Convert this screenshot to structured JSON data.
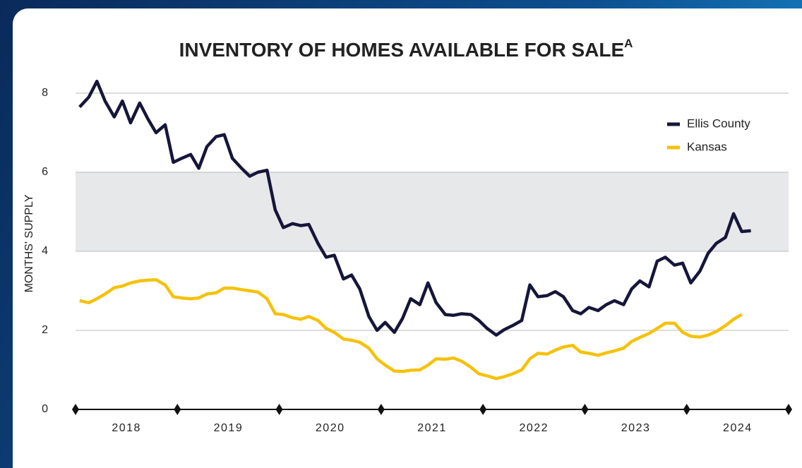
{
  "chart_data": {
    "type": "line",
    "title": "INVENTORY OF HOMES AVAILABLE FOR SALE",
    "title_superscript": "A",
    "ylabel": "MONTHS' SUPPLY",
    "x": [
      2018.04,
      2018.13,
      2018.21,
      2018.29,
      2018.38,
      2018.46,
      2018.54,
      2018.63,
      2018.71,
      2018.79,
      2018.88,
      2018.96,
      2019.04,
      2019.13,
      2019.21,
      2019.29,
      2019.38,
      2019.46,
      2019.54,
      2019.63,
      2019.71,
      2019.79,
      2019.88,
      2019.96,
      2020.04,
      2020.13,
      2020.21,
      2020.29,
      2020.38,
      2020.46,
      2020.54,
      2020.63,
      2020.71,
      2020.79,
      2020.88,
      2020.96,
      2021.04,
      2021.13,
      2021.21,
      2021.29,
      2021.38,
      2021.46,
      2021.54,
      2021.63,
      2021.71,
      2021.79,
      2021.88,
      2021.96,
      2022.04,
      2022.13,
      2022.21,
      2022.29,
      2022.38,
      2022.46,
      2022.54,
      2022.63,
      2022.71,
      2022.79,
      2022.88,
      2022.96,
      2023.04,
      2023.13,
      2023.21,
      2023.29,
      2023.38,
      2023.46,
      2023.54,
      2023.63,
      2023.71,
      2023.79,
      2023.88,
      2023.96,
      2024.04,
      2024.13,
      2024.21,
      2024.29,
      2024.38,
      2024.46,
      2024.54,
      2024.63,
      2024.71
    ],
    "series": [
      {
        "name": "Ellis County",
        "color": "#16163a",
        "values": [
          7.65,
          7.9,
          8.3,
          7.8,
          7.4,
          7.8,
          7.25,
          7.75,
          7.35,
          7.0,
          7.2,
          6.25,
          6.35,
          6.45,
          6.1,
          6.65,
          6.9,
          6.95,
          6.35,
          6.1,
          5.9,
          6.0,
          6.05,
          5.05,
          4.6,
          4.7,
          4.65,
          4.68,
          4.2,
          3.85,
          3.9,
          3.3,
          3.4,
          3.05,
          2.35,
          2.0,
          2.2,
          1.95,
          2.3,
          2.8,
          2.65,
          3.2,
          2.7,
          2.4,
          2.38,
          2.42,
          2.4,
          2.25,
          2.05,
          1.88,
          2.02,
          2.12,
          2.25,
          3.15,
          2.85,
          2.88,
          2.98,
          2.85,
          2.5,
          2.42,
          2.58,
          2.5,
          2.65,
          2.75,
          2.65,
          3.05,
          3.25,
          3.1,
          3.75,
          3.85,
          3.65,
          3.7,
          3.2,
          3.5,
          3.95,
          4.2,
          4.35,
          4.95,
          4.5,
          4.52,
          null
        ]
      },
      {
        "name": "Kansas",
        "color": "#f4c20d",
        "values": [
          2.75,
          2.7,
          2.8,
          2.92,
          3.08,
          3.12,
          3.2,
          3.25,
          3.27,
          3.28,
          3.15,
          2.85,
          2.82,
          2.8,
          2.82,
          2.92,
          2.95,
          3.07,
          3.07,
          3.03,
          3.0,
          2.97,
          2.8,
          2.42,
          2.4,
          2.32,
          2.28,
          2.35,
          2.25,
          2.05,
          1.95,
          1.78,
          1.75,
          1.7,
          1.55,
          1.28,
          1.12,
          0.97,
          0.96,
          0.99,
          1.0,
          1.12,
          1.28,
          1.27,
          1.3,
          1.22,
          1.07,
          0.9,
          0.85,
          0.78,
          0.83,
          0.9,
          1.0,
          1.28,
          1.42,
          1.4,
          1.5,
          1.58,
          1.62,
          1.45,
          1.42,
          1.37,
          1.43,
          1.48,
          1.55,
          1.72,
          1.82,
          1.92,
          2.05,
          2.18,
          2.18,
          1.95,
          1.85,
          1.83,
          1.88,
          1.97,
          2.12,
          2.28,
          2.4,
          null,
          null
        ]
      }
    ],
    "xlim": [
      2018,
      2025
    ],
    "xticks": [
      {
        "value": 2018.5,
        "label": "2018"
      },
      {
        "value": 2019.5,
        "label": "2019"
      },
      {
        "value": 2020.5,
        "label": "2020"
      },
      {
        "value": 2021.5,
        "label": "2021"
      },
      {
        "value": 2022.5,
        "label": "2022"
      },
      {
        "value": 2023.5,
        "label": "2023"
      },
      {
        "value": 2024.5,
        "label": "2024"
      }
    ],
    "x_boundaries": [
      2018,
      2019,
      2020,
      2021,
      2022,
      2023,
      2024,
      2025
    ],
    "ylim": [
      0,
      8
    ],
    "yticks": [
      0,
      2,
      4,
      6,
      8
    ],
    "grid": true,
    "shaded_band": [
      4,
      6
    ],
    "legend_position": "upper right"
  }
}
